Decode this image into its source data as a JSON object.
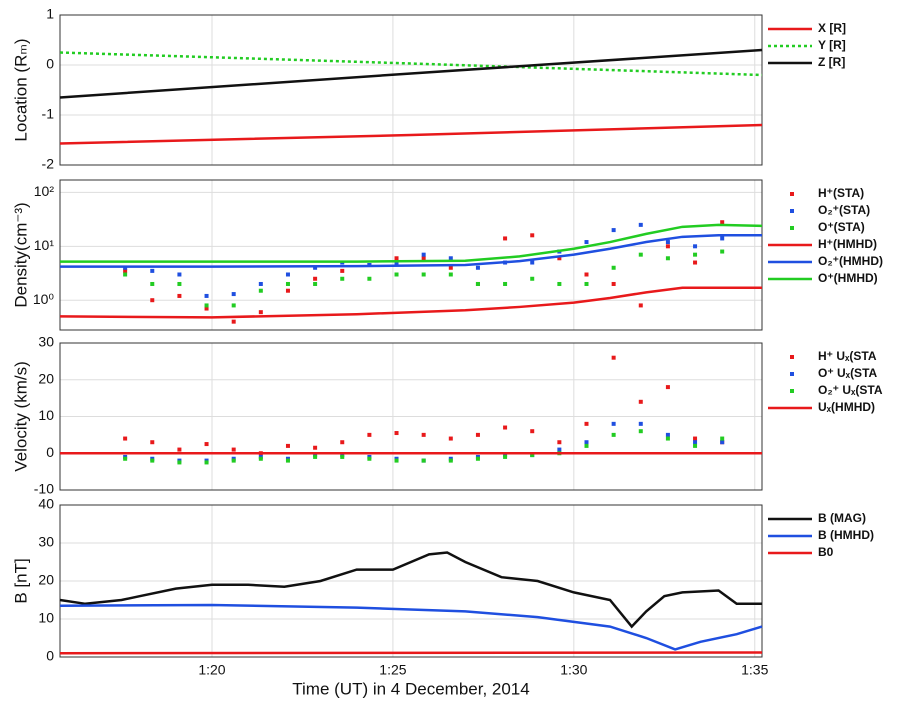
{
  "chart_data": [
    {
      "type": "line",
      "ylabel": "Location (Rₘ)",
      "xlim": [
        15.8,
        35.2
      ],
      "xticks": [
        20,
        25,
        30,
        35
      ],
      "ylim": [
        -2,
        1
      ],
      "yticks": [
        -2,
        -1,
        0,
        1
      ],
      "grid": true,
      "series": [
        {
          "name": "X [R]",
          "color": "#e8191b",
          "x": [
            15.8,
            25.5,
            35.2
          ],
          "values": [
            -1.57,
            -1.4,
            -1.2
          ]
        },
        {
          "name": "Y [R]",
          "color": "#22cc22",
          "dash": true,
          "x": [
            15.8,
            25.5,
            35.2
          ],
          "values": [
            0.25,
            0.03,
            -0.2
          ]
        },
        {
          "name": "Z [R]",
          "color": "#111111",
          "x": [
            15.8,
            25.5,
            35.2
          ],
          "values": [
            -0.65,
            -0.17,
            0.3
          ]
        }
      ]
    },
    {
      "type": "line",
      "ylabel": "Density(cm⁻³)",
      "xlim": [
        15.8,
        35.2
      ],
      "xticks": [
        20,
        25,
        30,
        35
      ],
      "ylim": [
        0.28,
        170
      ],
      "ylog": true,
      "yticks": [
        {
          "value": 1,
          "label": "10⁰"
        },
        {
          "value": 10,
          "label": "10¹"
        },
        {
          "value": 100,
          "label": "10²"
        }
      ],
      "grid": true,
      "series": [
        {
          "name": "H⁺(STA)",
          "color": "#e8191b",
          "marker": "square",
          "x": [
            17.6,
            18.35,
            19.1,
            19.85,
            20.6,
            21.35,
            22.1,
            22.85,
            23.6,
            24.35,
            25.1,
            25.85,
            26.6,
            27.35,
            28.1,
            28.85,
            29.6,
            30.35,
            31.1,
            31.85,
            32.6,
            33.35,
            34.1
          ],
          "values": [
            3.5,
            1.0,
            1.2,
            0.7,
            0.4,
            0.6,
            1.5,
            2.5,
            3.5,
            4.5,
            6,
            6,
            4,
            2,
            14,
            16,
            6,
            3,
            2,
            0.8,
            10,
            5,
            28
          ]
        },
        {
          "name": "O₂⁺(STA)",
          "color": "#1f4fe0",
          "marker": "square",
          "x": [
            17.6,
            18.35,
            19.1,
            19.85,
            20.6,
            21.35,
            22.1,
            22.85,
            23.6,
            24.35,
            25.1,
            25.85,
            26.6,
            27.35,
            28.1,
            28.85,
            29.6,
            30.35,
            31.1,
            31.85,
            32.6,
            33.35,
            34.1
          ],
          "values": [
            4,
            3.5,
            3,
            1.2,
            1.3,
            2,
            3,
            4,
            5,
            4.5,
            5,
            7,
            6,
            4,
            5,
            5,
            8,
            12,
            20,
            25,
            12,
            10,
            14
          ]
        },
        {
          "name": "O⁺(STA)",
          "color": "#22cc22",
          "marker": "square",
          "x": [
            17.6,
            18.35,
            19.1,
            19.85,
            20.6,
            21.35,
            22.1,
            22.85,
            23.6,
            24.35,
            25.1,
            25.85,
            26.6,
            27.35,
            28.1,
            28.85,
            29.6,
            30.35,
            31.1,
            31.85,
            32.6,
            33.35,
            34.1
          ],
          "values": [
            3,
            2,
            2,
            0.8,
            0.8,
            1.5,
            2,
            2,
            2.5,
            2.5,
            3,
            3,
            3,
            2,
            2,
            2.5,
            2,
            2,
            4,
            7,
            6,
            7,
            8
          ]
        },
        {
          "name": "H⁺(HMHD)",
          "color": "#e8191b",
          "x": [
            15.8,
            20,
            24,
            27,
            28.5,
            30,
            31,
            32,
            33,
            34,
            35.2
          ],
          "values": [
            0.5,
            0.48,
            0.55,
            0.65,
            0.75,
            0.9,
            1.1,
            1.4,
            1.7,
            1.7,
            1.7
          ]
        },
        {
          "name": "O₂⁺(HMHD)",
          "color": "#1f4fe0",
          "x": [
            15.8,
            20,
            24,
            27,
            28.5,
            30,
            31,
            32,
            33,
            34,
            35.2
          ],
          "values": [
            4.2,
            4.2,
            4.3,
            4.5,
            5.3,
            7,
            9,
            12,
            15,
            16,
            16
          ]
        },
        {
          "name": "O⁺(HMHD)",
          "color": "#22cc22",
          "x": [
            15.8,
            20,
            24,
            27,
            28.5,
            30,
            31,
            32,
            33,
            34,
            35.2
          ],
          "values": [
            5.2,
            5.2,
            5.2,
            5.4,
            6.5,
            9,
            12,
            17,
            23,
            25,
            24
          ]
        }
      ]
    },
    {
      "type": "line",
      "ylabel": "Velocity (km/s)",
      "xlim": [
        15.8,
        35.2
      ],
      "xticks": [
        20,
        25,
        30,
        35
      ],
      "ylim": [
        -10,
        30
      ],
      "yticks": [
        -10,
        0,
        10,
        20,
        30
      ],
      "grid": true,
      "series": [
        {
          "name": "H⁺ Uₓ(STA",
          "color": "#e8191b",
          "marker": "square",
          "x": [
            17.6,
            18.35,
            19.1,
            19.85,
            20.6,
            21.35,
            22.1,
            22.85,
            23.6,
            24.35,
            25.1,
            25.85,
            26.6,
            27.35,
            28.1,
            28.85,
            29.6,
            30.35,
            31.1,
            31.85,
            32.6,
            33.35,
            34.1
          ],
          "values": [
            4,
            3,
            1,
            2.5,
            1,
            0,
            2,
            1.5,
            3,
            5,
            5.5,
            5,
            4,
            5,
            7,
            6,
            3,
            8,
            26,
            14,
            18,
            4,
            3
          ]
        },
        {
          "name": "O⁺ Uₓ(STA",
          "color": "#1f4fe0",
          "marker": "square",
          "x": [
            17.6,
            18.35,
            19.1,
            19.85,
            20.6,
            21.35,
            22.1,
            22.85,
            23.6,
            24.35,
            25.1,
            25.85,
            26.6,
            27.35,
            28.1,
            28.85,
            29.6,
            30.35,
            31.1,
            31.85,
            32.6,
            33.35,
            34.1
          ],
          "values": [
            -1,
            -1.5,
            -2,
            -2,
            -1.5,
            -1,
            -1.5,
            -0.5,
            -0.5,
            -1,
            -1.5,
            -2,
            -1.5,
            -1,
            -0.5,
            -0.5,
            1,
            3,
            8,
            8,
            5,
            3,
            3
          ]
        },
        {
          "name": "O₂⁺ Uₓ(STA",
          "color": "#22cc22",
          "marker": "square",
          "x": [
            17.6,
            18.35,
            19.1,
            19.85,
            20.6,
            21.35,
            22.1,
            22.85,
            23.6,
            24.35,
            25.1,
            25.85,
            26.6,
            27.35,
            28.1,
            28.85,
            29.6,
            30.35,
            31.1,
            31.85,
            32.6,
            33.35,
            34.1
          ],
          "values": [
            -1.5,
            -2,
            -2.5,
            -2.5,
            -2,
            -1.5,
            -2,
            -1,
            -1,
            -1.5,
            -2,
            -2,
            -2,
            -1.5,
            -1,
            -0.5,
            0,
            2,
            5,
            6,
            4,
            2,
            4
          ]
        },
        {
          "name": "Uₓ(HMHD)",
          "color": "#e8191b",
          "x": [
            15.8,
            35.2
          ],
          "values": [
            0,
            0
          ]
        }
      ]
    },
    {
      "type": "line",
      "ylabel": "B [nT]",
      "xlabel": "Time (UT) in 4 December, 2014",
      "xlim": [
        15.8,
        35.2
      ],
      "xticks": [
        {
          "value": 20,
          "label": "1:20"
        },
        {
          "value": 25,
          "label": "1:25"
        },
        {
          "value": 30,
          "label": "1:30"
        },
        {
          "value": 35,
          "label": "1:35"
        }
      ],
      "ylim": [
        0,
        40
      ],
      "yticks": [
        0,
        10,
        20,
        30,
        40
      ],
      "grid": true,
      "series": [
        {
          "name": "B (MAG)",
          "color": "#111111",
          "x": [
            15.8,
            16.5,
            17.5,
            18,
            19,
            20,
            21,
            22,
            23,
            24,
            25,
            26,
            26.5,
            27,
            28,
            29,
            30,
            31,
            31.6,
            32,
            32.5,
            33,
            34,
            34.5,
            35.2
          ],
          "values": [
            15,
            14,
            15,
            16,
            18,
            19,
            19,
            18.5,
            20,
            23,
            23,
            27,
            27.5,
            25,
            21,
            20,
            17,
            15,
            8,
            12,
            16,
            17,
            17.5,
            14,
            14
          ]
        },
        {
          "name": "B (HMHD)",
          "color": "#1f4fe0",
          "x": [
            15.8,
            20,
            24,
            27,
            29,
            31,
            32,
            32.8,
            33.5,
            34.5,
            35.2
          ],
          "values": [
            13.5,
            13.7,
            13,
            12,
            10.5,
            8,
            5,
            2,
            4,
            6,
            8
          ]
        },
        {
          "name": "B0",
          "color": "#e8191b",
          "x": [
            15.8,
            35.2
          ],
          "values": [
            1,
            1.2
          ]
        }
      ]
    }
  ]
}
